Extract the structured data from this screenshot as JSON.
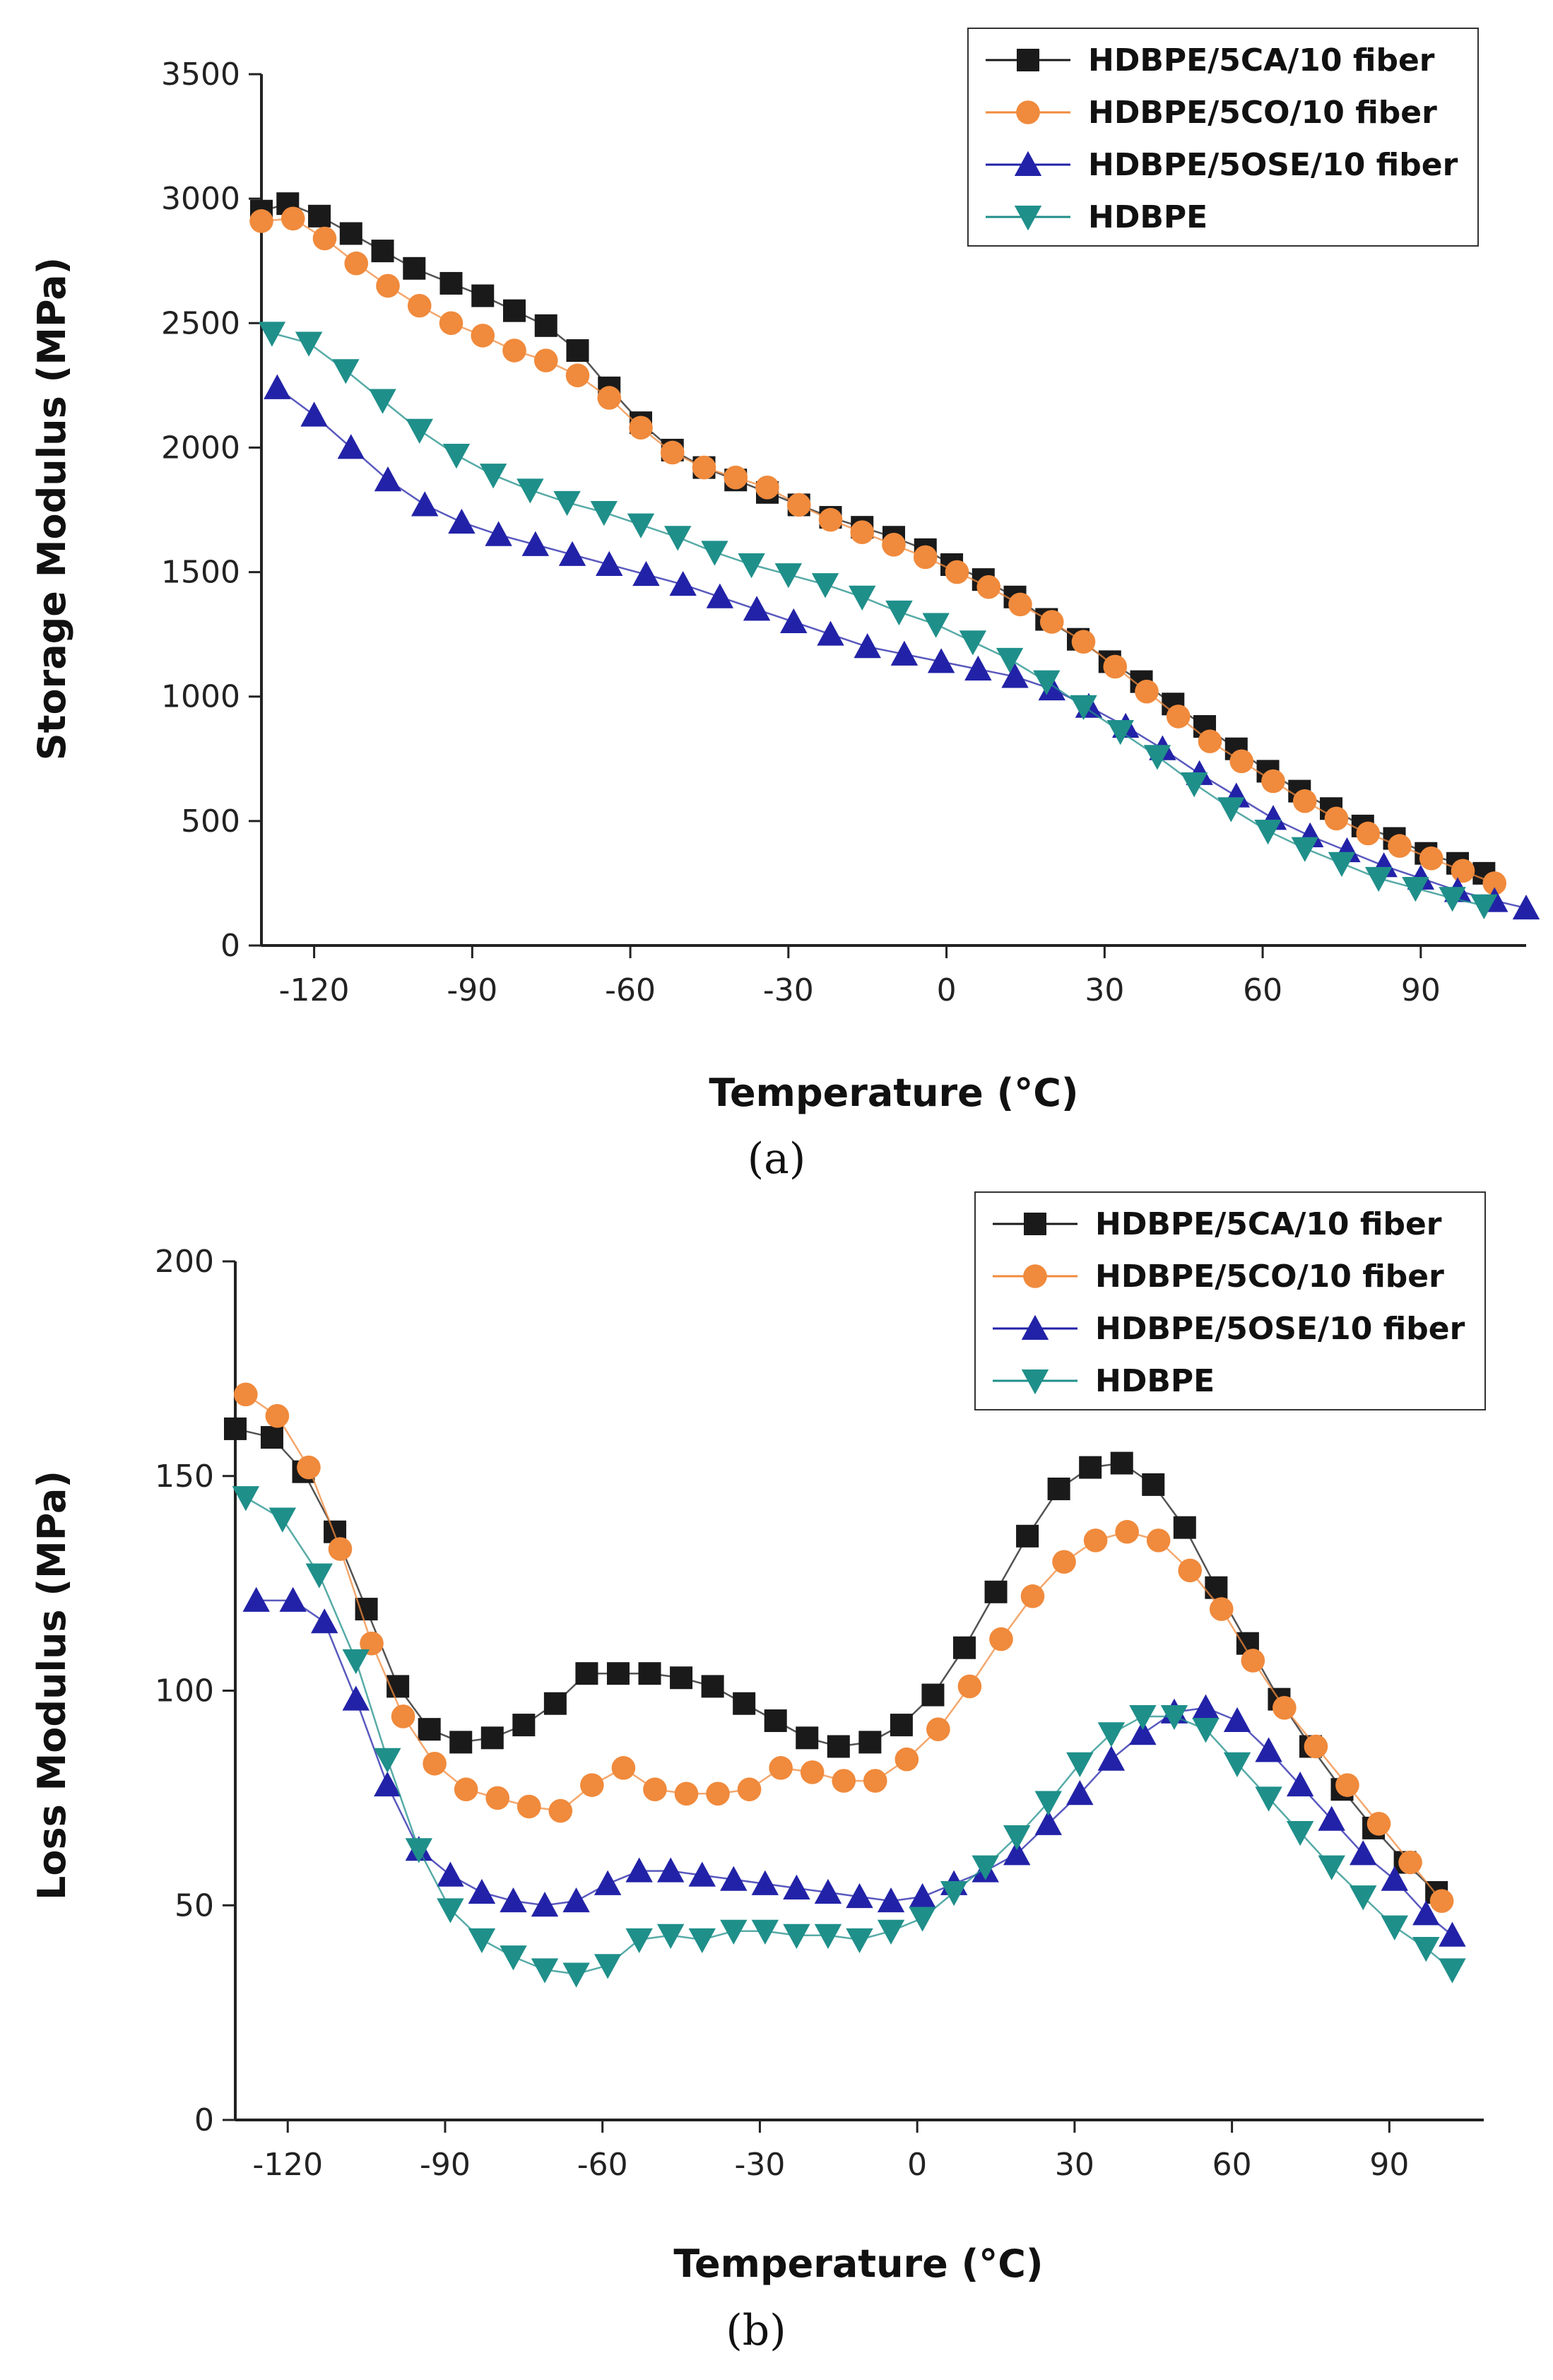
{
  "chart_data": [
    {
      "type": "line",
      "panel": "a",
      "caption": "(a)",
      "xlabel": "Temperature (°C)",
      "ylabel": "Storage Modulus (MPa)",
      "xlim": [
        -130,
        110
      ],
      "ylim": [
        0,
        3500
      ],
      "xticks": [
        -120,
        -90,
        -60,
        -30,
        0,
        30,
        60,
        90
      ],
      "yticks": [
        0,
        500,
        1000,
        1500,
        2000,
        2500,
        3000,
        3500
      ],
      "x_tick_labels": [
        "-120",
        "-90",
        "-60",
        "-30",
        "0",
        "30",
        "60",
        "90"
      ],
      "y_tick_labels": [
        "0",
        "500",
        "1000",
        "1500",
        "2000",
        "2500",
        "3000",
        "3500"
      ],
      "grid": false,
      "legend_position": "top-right",
      "series": [
        {
          "name": "HDBPE/5CA/10 fiber",
          "color": "#1a1a1a",
          "marker": "square",
          "x": [
            -130,
            -125,
            -119,
            -113,
            -107,
            -101,
            -94,
            -88,
            -82,
            -76,
            -70,
            -64,
            -58,
            -52,
            -46,
            -40,
            -34,
            -28,
            -22,
            -16,
            -10,
            -4,
            1,
            7,
            13,
            19,
            25,
            31,
            37,
            43,
            49,
            55,
            61,
            67,
            73,
            79,
            85,
            91,
            97,
            102
          ],
          "values": [
            2950,
            2980,
            2930,
            2860,
            2790,
            2720,
            2660,
            2610,
            2550,
            2490,
            2390,
            2240,
            2100,
            1990,
            1920,
            1870,
            1820,
            1770,
            1720,
            1680,
            1640,
            1590,
            1530,
            1470,
            1400,
            1310,
            1230,
            1140,
            1060,
            970,
            880,
            790,
            700,
            620,
            550,
            480,
            430,
            370,
            330,
            290
          ]
        },
        {
          "name": "HDBPE/5CO/10 fiber",
          "color": "#f08a3c",
          "marker": "circle",
          "x": [
            -130,
            -124,
            -118,
            -112,
            -106,
            -100,
            -94,
            -88,
            -82,
            -76,
            -70,
            -64,
            -58,
            -52,
            -46,
            -40,
            -34,
            -28,
            -22,
            -16,
            -10,
            -4,
            2,
            8,
            14,
            20,
            26,
            32,
            38,
            44,
            50,
            56,
            62,
            68,
            74,
            80,
            86,
            92,
            98,
            104
          ],
          "values": [
            2910,
            2920,
            2840,
            2740,
            2650,
            2570,
            2500,
            2450,
            2390,
            2350,
            2290,
            2200,
            2080,
            1980,
            1920,
            1880,
            1840,
            1770,
            1710,
            1660,
            1610,
            1560,
            1500,
            1440,
            1370,
            1300,
            1220,
            1120,
            1020,
            920,
            820,
            740,
            660,
            580,
            510,
            450,
            400,
            350,
            300,
            250
          ]
        },
        {
          "name": "HDBPE/5OSE/10 fiber",
          "color": "#2222a8",
          "marker": "triangle-up",
          "x": [
            -127,
            -120,
            -113,
            -106,
            -99,
            -92,
            -85,
            -78,
            -71,
            -64,
            -57,
            -50,
            -43,
            -36,
            -29,
            -22,
            -15,
            -8,
            -1,
            6,
            13,
            20,
            27,
            34,
            41,
            48,
            55,
            62,
            69,
            76,
            83,
            90,
            97,
            104,
            110
          ],
          "values": [
            2240,
            2130,
            2000,
            1870,
            1770,
            1700,
            1650,
            1610,
            1570,
            1530,
            1490,
            1450,
            1400,
            1350,
            1300,
            1250,
            1200,
            1170,
            1140,
            1110,
            1080,
            1030,
            960,
            880,
            790,
            690,
            600,
            510,
            440,
            380,
            320,
            270,
            220,
            180,
            150
          ]
        },
        {
          "name": "HDBPE",
          "color": "#1f8f8a",
          "marker": "triangle-down",
          "x": [
            -128,
            -121,
            -114,
            -107,
            -100,
            -93,
            -86,
            -79,
            -72,
            -65,
            -58,
            -51,
            -44,
            -37,
            -30,
            -23,
            -16,
            -9,
            -2,
            5,
            12,
            19,
            26,
            33,
            40,
            47,
            54,
            61,
            68,
            75,
            82,
            89,
            96,
            102
          ],
          "values": [
            2460,
            2420,
            2310,
            2190,
            2070,
            1970,
            1890,
            1830,
            1780,
            1740,
            1690,
            1640,
            1580,
            1530,
            1490,
            1450,
            1400,
            1340,
            1290,
            1220,
            1150,
            1060,
            960,
            860,
            760,
            650,
            550,
            460,
            390,
            330,
            270,
            230,
            190,
            160
          ]
        }
      ]
    },
    {
      "type": "line",
      "panel": "b",
      "caption": "(b)",
      "xlabel": "Temperature (°C)",
      "ylabel": "Loss Modulus (MPa)",
      "xlim": [
        -130,
        108
      ],
      "ylim": [
        0,
        200
      ],
      "xticks": [
        -120,
        -90,
        -60,
        -30,
        0,
        30,
        60,
        90
      ],
      "yticks": [
        0,
        50,
        100,
        150,
        200
      ],
      "x_tick_labels": [
        "-120",
        "-90",
        "-60",
        "-30",
        "0",
        "30",
        "60",
        "90"
      ],
      "y_tick_labels": [
        "0",
        "50",
        "100",
        "150",
        "200"
      ],
      "grid": false,
      "legend_position": "top-right",
      "series": [
        {
          "name": "HDBPE/5CA/10 fiber",
          "color": "#1a1a1a",
          "marker": "square",
          "x": [
            -130,
            -123,
            -117,
            -111,
            -105,
            -99,
            -93,
            -87,
            -81,
            -75,
            -69,
            -63,
            -57,
            -51,
            -45,
            -39,
            -33,
            -27,
            -21,
            -15,
            -9,
            -3,
            3,
            9,
            15,
            21,
            27,
            33,
            39,
            45,
            51,
            57,
            63,
            69,
            75,
            81,
            87,
            93,
            99
          ],
          "values": [
            161,
            159,
            151,
            137,
            119,
            101,
            91,
            88,
            89,
            92,
            97,
            104,
            104,
            104,
            103,
            101,
            97,
            93,
            89,
            87,
            88,
            92,
            99,
            110,
            123,
            136,
            147,
            152,
            153,
            148,
            138,
            124,
            111,
            98,
            87,
            77,
            68,
            60,
            53
          ]
        },
        {
          "name": "HDBPE/5CO/10 fiber",
          "color": "#f08a3c",
          "marker": "circle",
          "x": [
            -128,
            -122,
            -116,
            -110,
            -104,
            -98,
            -92,
            -86,
            -80,
            -74,
            -68,
            -62,
            -56,
            -50,
            -44,
            -38,
            -32,
            -26,
            -20,
            -14,
            -8,
            -2,
            4,
            10,
            16,
            22,
            28,
            34,
            40,
            46,
            52,
            58,
            64,
            70,
            76,
            82,
            88,
            94,
            100
          ],
          "values": [
            169,
            164,
            152,
            133,
            111,
            94,
            83,
            77,
            75,
            73,
            72,
            78,
            82,
            77,
            76,
            76,
            77,
            82,
            81,
            79,
            79,
            84,
            91,
            101,
            112,
            122,
            130,
            135,
            137,
            135,
            128,
            119,
            107,
            96,
            87,
            78,
            69,
            60,
            51
          ]
        },
        {
          "name": "HDBPE/5OSE/10 fiber",
          "color": "#2222a8",
          "marker": "triangle-up",
          "x": [
            -126,
            -119,
            -113,
            -107,
            -101,
            -95,
            -89,
            -83,
            -77,
            -71,
            -65,
            -59,
            -53,
            -47,
            -41,
            -35,
            -29,
            -23,
            -17,
            -11,
            -5,
            1,
            7,
            13,
            19,
            25,
            31,
            37,
            43,
            49,
            55,
            61,
            67,
            73,
            79,
            85,
            91,
            97,
            102
          ],
          "values": [
            121,
            121,
            116,
            98,
            78,
            63,
            57,
            53,
            51,
            50,
            51,
            55,
            58,
            58,
            57,
            56,
            55,
            54,
            53,
            52,
            51,
            52,
            55,
            58,
            62,
            69,
            76,
            84,
            90,
            95,
            96,
            93,
            86,
            78,
            70,
            62,
            56,
            48,
            43
          ]
        },
        {
          "name": "HDBPE",
          "color": "#1f8f8a",
          "marker": "triangle-down",
          "x": [
            -128,
            -121,
            -114,
            -107,
            -101,
            -95,
            -89,
            -83,
            -77,
            -71,
            -65,
            -59,
            -53,
            -47,
            -41,
            -35,
            -29,
            -23,
            -17,
            -11,
            -5,
            1,
            7,
            13,
            19,
            25,
            31,
            37,
            43,
            49,
            55,
            61,
            67,
            73,
            79,
            85,
            91,
            97,
            102
          ],
          "values": [
            145,
            140,
            127,
            107,
            84,
            63,
            49,
            42,
            38,
            35,
            34,
            36,
            42,
            43,
            42,
            44,
            44,
            43,
            43,
            42,
            44,
            47,
            53,
            59,
            66,
            74,
            83,
            90,
            94,
            94,
            91,
            83,
            75,
            67,
            59,
            52,
            45,
            40,
            35
          ]
        }
      ]
    }
  ]
}
